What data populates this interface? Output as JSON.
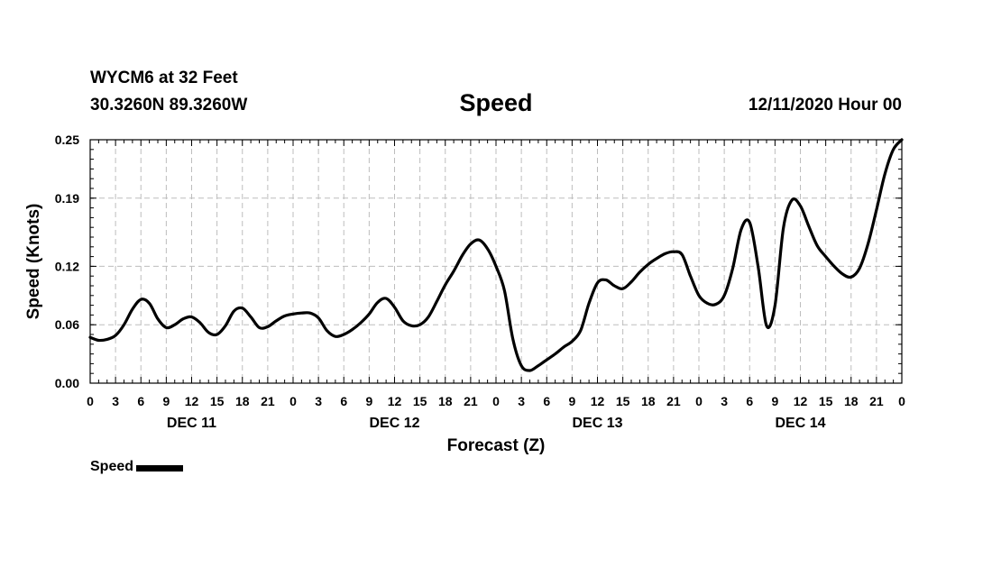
{
  "header": {
    "station": "WYCM6 at 32 Feet",
    "coords": "30.3260N 89.3260W",
    "title": "Speed",
    "datetime": "12/11/2020 Hour 00"
  },
  "legend": {
    "label": "Speed"
  },
  "chart_data": {
    "type": "line",
    "title": "Speed",
    "xlabel": "Forecast (Z)",
    "ylabel": "Speed (Knots)",
    "xlim": [
      0,
      96
    ],
    "ylim": [
      0,
      0.25
    ],
    "yticks": [
      0.0,
      0.06,
      0.12,
      0.19,
      0.25
    ],
    "ytick_labels": [
      "0.00",
      "0.06",
      "0.12",
      "0.19",
      "0.25"
    ],
    "xtick_labels": [
      "0",
      "3",
      "6",
      "9",
      "12",
      "15",
      "18",
      "21",
      "0",
      "3",
      "6",
      "9",
      "12",
      "15",
      "18",
      "21",
      "0",
      "3",
      "6",
      "9",
      "12",
      "15",
      "18",
      "21",
      "0",
      "3",
      "6",
      "9",
      "12",
      "15",
      "18",
      "21",
      "0"
    ],
    "day_labels": [
      "DEC 11",
      "DEC 12",
      "DEC 13",
      "DEC 14"
    ],
    "grid": true,
    "legend_position": "bottom-left",
    "series": [
      {
        "name": "Speed",
        "color": "#000000",
        "x": [
          0,
          1,
          2,
          3,
          4,
          5,
          6,
          7,
          8,
          9,
          10,
          11,
          12,
          13,
          14,
          15,
          16,
          17,
          18,
          19,
          20,
          21,
          22,
          23,
          24,
          25,
          26,
          27,
          28,
          29,
          30,
          31,
          32,
          33,
          34,
          35,
          36,
          37,
          38,
          39,
          40,
          41,
          42,
          43,
          44,
          45,
          46,
          47,
          48,
          49,
          50,
          51,
          52,
          53,
          54,
          55,
          56,
          57,
          58,
          59,
          60,
          61,
          62,
          63,
          64,
          65,
          66,
          67,
          68,
          69,
          70,
          71,
          72,
          73,
          74,
          75,
          76,
          77,
          78,
          79,
          80,
          81,
          82,
          83,
          84,
          85,
          86,
          87,
          88,
          89,
          90,
          91,
          92,
          93,
          94,
          95,
          96
        ],
        "y": [
          0.047,
          0.044,
          0.045,
          0.049,
          0.06,
          0.076,
          0.086,
          0.082,
          0.066,
          0.057,
          0.06,
          0.066,
          0.068,
          0.062,
          0.052,
          0.05,
          0.059,
          0.074,
          0.077,
          0.068,
          0.057,
          0.058,
          0.064,
          0.069,
          0.071,
          0.072,
          0.072,
          0.067,
          0.054,
          0.048,
          0.05,
          0.055,
          0.062,
          0.071,
          0.083,
          0.087,
          0.078,
          0.064,
          0.059,
          0.06,
          0.068,
          0.084,
          0.101,
          0.115,
          0.131,
          0.143,
          0.147,
          0.138,
          0.12,
          0.095,
          0.045,
          0.018,
          0.013,
          0.018,
          0.024,
          0.03,
          0.037,
          0.043,
          0.054,
          0.082,
          0.103,
          0.106,
          0.1,
          0.097,
          0.104,
          0.114,
          0.122,
          0.128,
          0.133,
          0.135,
          0.132,
          0.11,
          0.09,
          0.082,
          0.081,
          0.09,
          0.118,
          0.158,
          0.165,
          0.12,
          0.059,
          0.08,
          0.16,
          0.188,
          0.182,
          0.161,
          0.141,
          0.13,
          0.12,
          0.112,
          0.109,
          0.118,
          0.143,
          0.178,
          0.215,
          0.24,
          0.25
        ]
      }
    ]
  }
}
